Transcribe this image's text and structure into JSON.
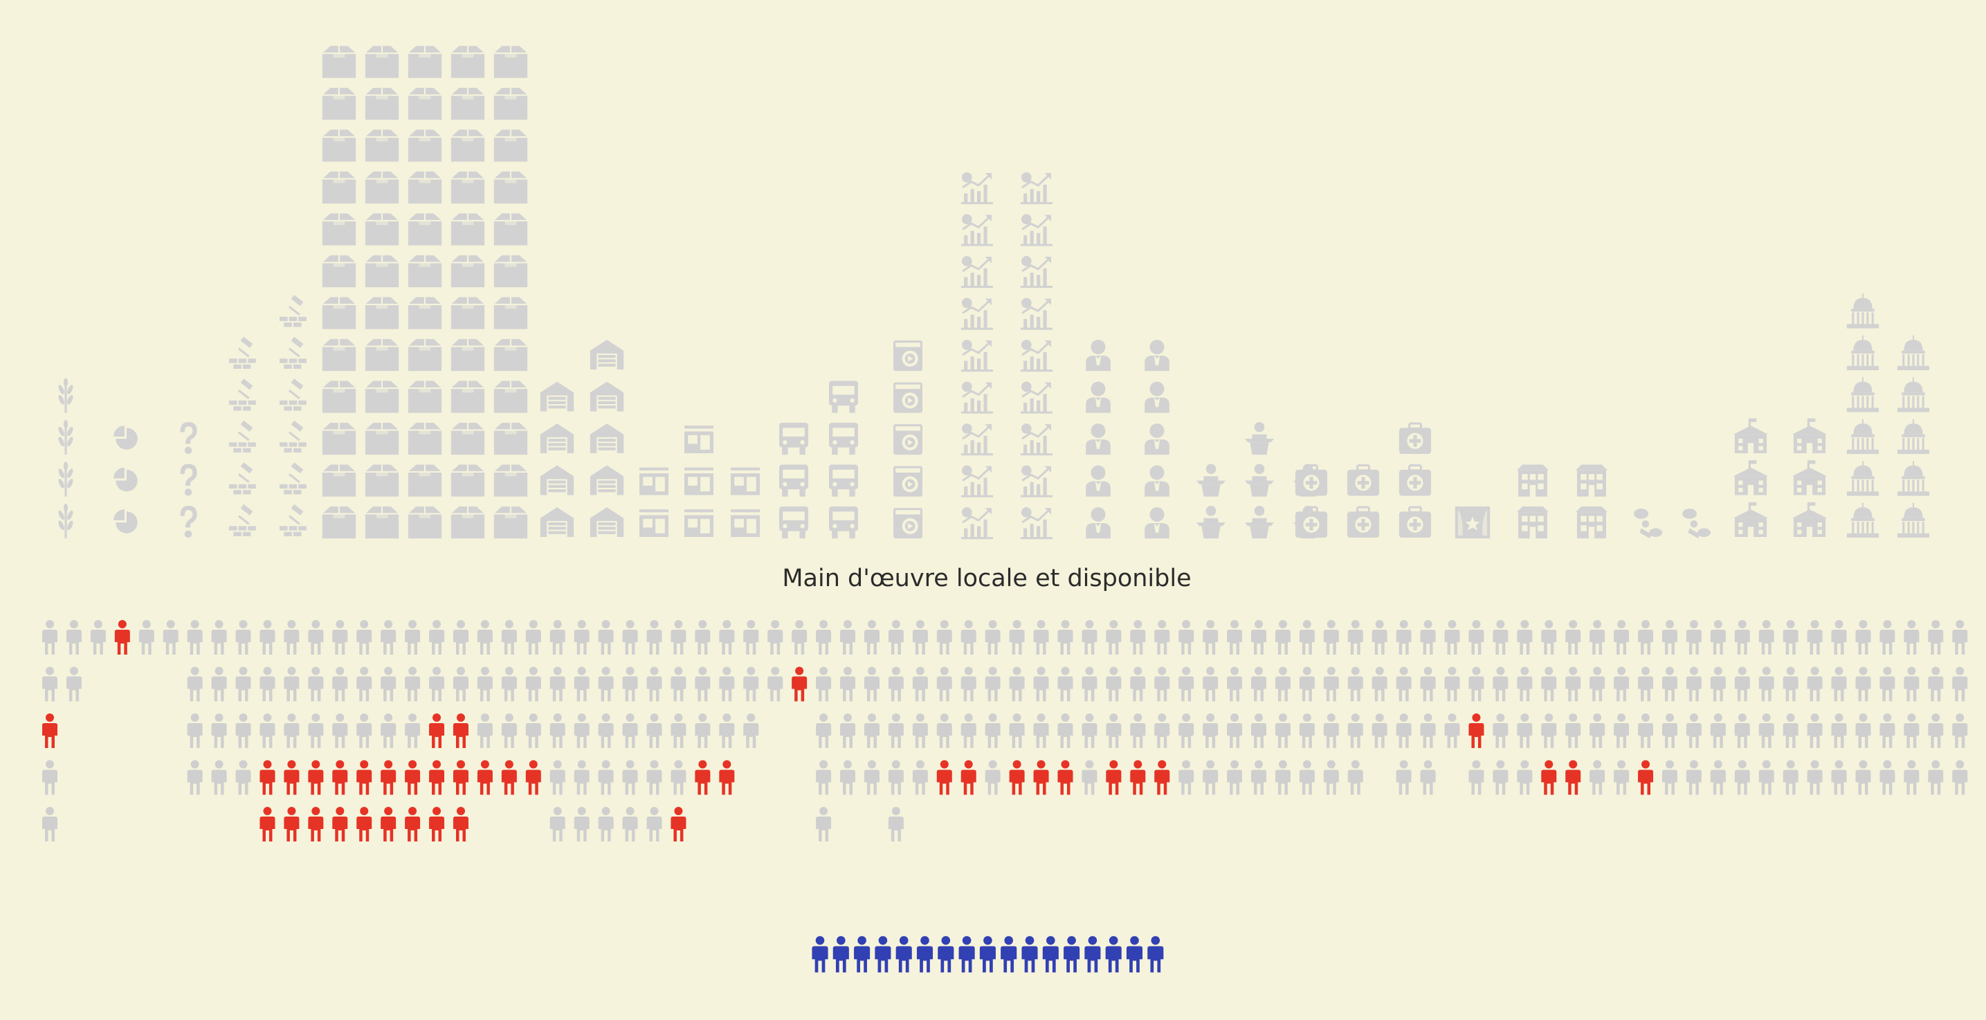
{
  "title": "Main d'œuvre locale et disponible",
  "colors": {
    "background": "#f6f3dc",
    "icon_muted": "#d2d2d2",
    "person_inactive": "#cfcfcf",
    "person_highlight": "#e53325",
    "person_available": "#3140b3",
    "title_text": "#2b2b2b"
  },
  "chart_data": {
    "type": "pictogram",
    "sectors": [
      {
        "icon": "wheat-icon",
        "columns": [
          4
        ]
      },
      {
        "icon": "pie-chart-icon",
        "columns": [
          3
        ]
      },
      {
        "icon": "question-mark-icon",
        "columns": [
          3
        ]
      },
      {
        "icon": "hammer-bricks-icon",
        "columns": [
          5,
          6
        ]
      },
      {
        "icon": "box-icon",
        "columns": [
          12,
          12,
          12,
          12,
          12
        ]
      },
      {
        "icon": "warehouse-icon",
        "columns": [
          4,
          5
        ]
      },
      {
        "icon": "shop-icon",
        "columns": [
          2,
          3,
          2
        ]
      },
      {
        "icon": "truck-icon",
        "columns": [
          3,
          4
        ]
      },
      {
        "icon": "washing-machine-icon",
        "columns": [
          5
        ]
      },
      {
        "icon": "finance-chart-icon",
        "columns": [
          9,
          9
        ]
      },
      {
        "icon": "businessman-icon",
        "columns": [
          5,
          5
        ]
      },
      {
        "icon": "lecturer-icon",
        "columns": [
          2,
          3,
          2
        ]
      },
      {
        "icon": "medical-kit-icon",
        "columns": [
          2,
          2,
          3
        ]
      },
      {
        "icon": "theater-icon",
        "columns": [
          1
        ]
      },
      {
        "icon": "hotel-icon",
        "columns": [
          2,
          2
        ]
      },
      {
        "icon": "chat-person-icon",
        "columns": [
          1,
          1
        ]
      },
      {
        "icon": "school-icon",
        "columns": [
          3,
          3
        ]
      },
      {
        "icon": "capitol-icon",
        "columns": [
          6,
          5
        ]
      }
    ],
    "workforce": [
      [
        1,
        1,
        1,
        1,
        1
      ],
      [
        1,
        1,
        0,
        0,
        0
      ],
      [
        1,
        0,
        0,
        0,
        0
      ],
      [
        1,
        0,
        0,
        0,
        0
      ],
      [
        1,
        0,
        0,
        0,
        0
      ],
      [
        1,
        0,
        0,
        0,
        0
      ],
      [
        1,
        1,
        1,
        1,
        0
      ],
      [
        1,
        1,
        1,
        1,
        0
      ],
      [
        1,
        1,
        1,
        1,
        0
      ],
      [
        1,
        1,
        1,
        1,
        2
      ],
      [
        1,
        1,
        1,
        1,
        2
      ],
      [
        1,
        1,
        1,
        1,
        2
      ],
      [
        1,
        1,
        1,
        1,
        2
      ],
      [
        1,
        1,
        1,
        1,
        2
      ],
      [
        1,
        1,
        1,
        1,
        2
      ],
      [
        1,
        1,
        1,
        1,
        2
      ],
      [
        1,
        1,
        1,
        1,
        2
      ],
      [
        1,
        1,
        1,
        1,
        2
      ],
      [
        1,
        1,
        1,
        1,
        0
      ],
      [
        1,
        1,
        1,
        1,
        0
      ],
      [
        1,
        1,
        1,
        1,
        0
      ],
      [
        1,
        1,
        1,
        1,
        1
      ],
      [
        1,
        1,
        1,
        1,
        1
      ],
      [
        1,
        1,
        1,
        1,
        1
      ],
      [
        1,
        1,
        1,
        1,
        1
      ],
      [
        1,
        1,
        1,
        1,
        1
      ],
      [
        1,
        1,
        1,
        1,
        1
      ],
      [
        1,
        1,
        1,
        1,
        0
      ],
      [
        1,
        1,
        1,
        1,
        0
      ],
      [
        1,
        1,
        1,
        0,
        0
      ],
      [
        1,
        1,
        0,
        0,
        0
      ],
      [
        1,
        1,
        0,
        0,
        0
      ],
      [
        1,
        1,
        1,
        1,
        1
      ],
      [
        1,
        1,
        1,
        1,
        0
      ],
      [
        1,
        1,
        1,
        1,
        0
      ],
      [
        1,
        1,
        1,
        1,
        1
      ],
      [
        1,
        1,
        1,
        1,
        0
      ],
      [
        1,
        1,
        1,
        1,
        0
      ],
      [
        1,
        1,
        1,
        1,
        0
      ],
      [
        1,
        1,
        1,
        1,
        0
      ],
      [
        1,
        1,
        1,
        1,
        0
      ],
      [
        1,
        1,
        1,
        1,
        0
      ],
      [
        1,
        1,
        1,
        1,
        0
      ],
      [
        1,
        1,
        1,
        1,
        0
      ],
      [
        1,
        1,
        1,
        1,
        0
      ],
      [
        1,
        1,
        1,
        1,
        0
      ],
      [
        1,
        1,
        1,
        1,
        0
      ],
      [
        1,
        1,
        1,
        1,
        0
      ],
      [
        1,
        1,
        1,
        1,
        0
      ],
      [
        1,
        1,
        1,
        1,
        0
      ],
      [
        1,
        1,
        1,
        1,
        0
      ],
      [
        1,
        1,
        1,
        1,
        0
      ],
      [
        1,
        1,
        1,
        1,
        0
      ],
      [
        1,
        1,
        1,
        1,
        0
      ],
      [
        1,
        1,
        1,
        1,
        0
      ],
      [
        1,
        1,
        1,
        0,
        0
      ],
      [
        1,
        1,
        1,
        1,
        0
      ],
      [
        1,
        1,
        1,
        1,
        0
      ],
      [
        1,
        1,
        1,
        0,
        0
      ],
      [
        1,
        1,
        1,
        1,
        0
      ],
      [
        1,
        1,
        1,
        1,
        0
      ],
      [
        1,
        1,
        1,
        1,
        0
      ],
      [
        1,
        1,
        1,
        1,
        0
      ],
      [
        1,
        1,
        1,
        1,
        0
      ],
      [
        1,
        1,
        1,
        1,
        0
      ],
      [
        1,
        1,
        1,
        1,
        0
      ],
      [
        1,
        1,
        1,
        1,
        0
      ],
      [
        1,
        1,
        1,
        1,
        0
      ],
      [
        1,
        1,
        1,
        1,
        0
      ],
      [
        1,
        1,
        1,
        1,
        0
      ],
      [
        1,
        1,
        1,
        1,
        0
      ],
      [
        1,
        1,
        1,
        1,
        0
      ],
      [
        1,
        1,
        1,
        1,
        0
      ],
      [
        1,
        1,
        1,
        1,
        0
      ],
      [
        1,
        1,
        1,
        1,
        0
      ],
      [
        1,
        1,
        1,
        1,
        0
      ],
      [
        1,
        1,
        1,
        1,
        0
      ],
      [
        1,
        1,
        1,
        1,
        0
      ],
      [
        1,
        1,
        1,
        1,
        0
      ],
      [
        1,
        1,
        1,
        1,
        0
      ]
    ],
    "highlights": [
      [
        3,
        0
      ],
      [
        0,
        2
      ],
      [
        9,
        3
      ],
      [
        10,
        3
      ],
      [
        11,
        3
      ],
      [
        12,
        3
      ],
      [
        13,
        3
      ],
      [
        14,
        3
      ],
      [
        15,
        3
      ],
      [
        16,
        3
      ],
      [
        17,
        3
      ],
      [
        9,
        4
      ],
      [
        10,
        4
      ],
      [
        11,
        4
      ],
      [
        12,
        4
      ],
      [
        13,
        4
      ],
      [
        14,
        4
      ],
      [
        15,
        4
      ],
      [
        16,
        4
      ],
      [
        17,
        4
      ],
      [
        16,
        2
      ],
      [
        17,
        2
      ],
      [
        18,
        3
      ],
      [
        19,
        3
      ],
      [
        20,
        3
      ],
      [
        26,
        4
      ],
      [
        27,
        3
      ],
      [
        28,
        3
      ],
      [
        31,
        1
      ],
      [
        36,
        4
      ],
      [
        37,
        3
      ],
      [
        38,
        3
      ],
      [
        40,
        3
      ],
      [
        41,
        3
      ],
      [
        42,
        3
      ],
      [
        44,
        3
      ],
      [
        45,
        3
      ],
      [
        46,
        4
      ],
      [
        46,
        3
      ],
      [
        59,
        2
      ],
      [
        62,
        3
      ],
      [
        63,
        3
      ],
      [
        66,
        3
      ]
    ],
    "available_count": 17
  }
}
